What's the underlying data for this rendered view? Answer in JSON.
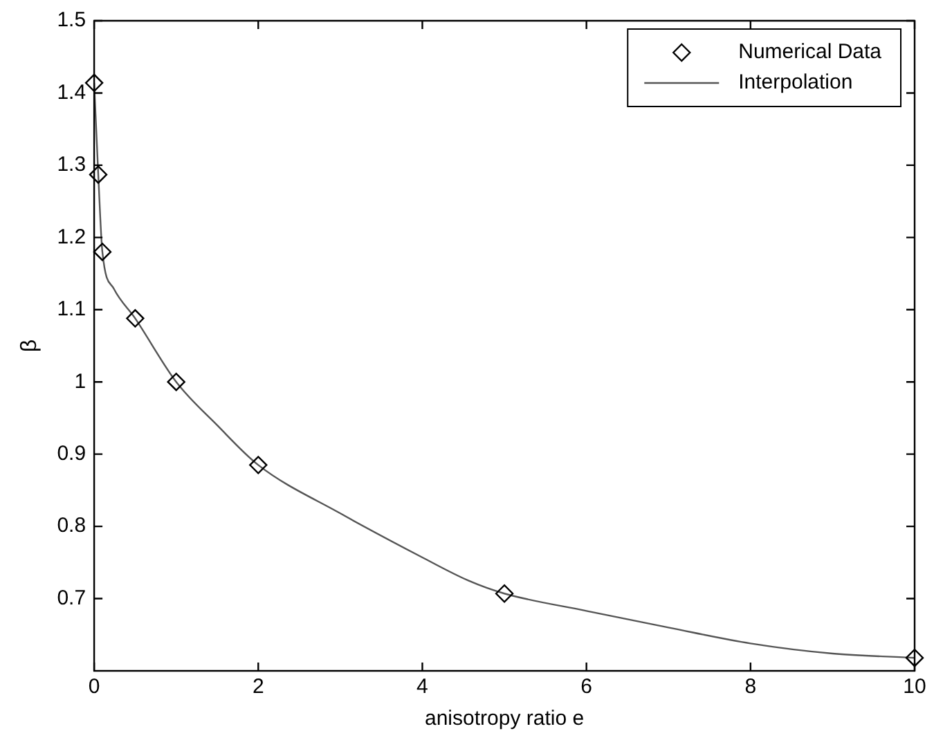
{
  "chart_data": {
    "type": "scatter",
    "xlabel": "anisotropy ratio e",
    "ylabel": "β",
    "xlim": [
      0,
      10
    ],
    "xticks": [
      0,
      2,
      4,
      6,
      8,
      10
    ],
    "ylim": [
      0.6,
      1.5
    ],
    "yticks": [
      0.7,
      0.8,
      0.9,
      1,
      1.1,
      1.2,
      1.3,
      1.4,
      1.5
    ],
    "legend": "top right",
    "grid": false,
    "series": [
      {
        "name": "Numerical Data",
        "type": "scatter",
        "color": "#000000",
        "marker": "diamond",
        "x": [
          0,
          0.05,
          0.1,
          0.5,
          1,
          2,
          5,
          10
        ],
        "values": [
          1.414,
          1.287,
          1.18,
          1.088,
          1.0,
          0.885,
          0.707,
          0.618
        ]
      },
      {
        "name": "Interpolation",
        "type": "line",
        "color": "#555555",
        "marker": "none",
        "line_style": "solid",
        "x": [
          0,
          0.05,
          0.1,
          0.24,
          0.5,
          1,
          1.5,
          2,
          3,
          4,
          4.56,
          5,
          6,
          7,
          8,
          9,
          10
        ],
        "values": [
          1.414,
          1.287,
          1.18,
          1.129,
          1.088,
          1.0,
          0.94,
          0.885,
          0.818,
          0.757,
          0.725,
          0.707,
          0.683,
          0.66,
          0.638,
          0.624,
          0.618
        ]
      }
    ]
  }
}
